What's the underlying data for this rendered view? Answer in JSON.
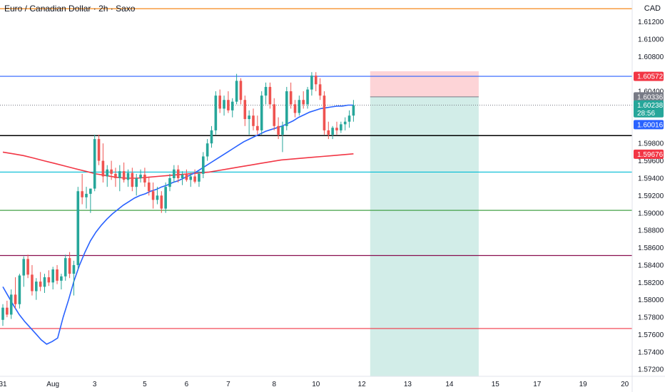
{
  "header": {
    "title": "Euro / Canadian Dollar · 2h · Saxo",
    "currency": "CAD"
  },
  "colors": {
    "up": "#26a69a",
    "down": "#ef5350",
    "ema_short": "#2962ff",
    "ema_long": "#f23645",
    "background": "#ffffff"
  },
  "chart_data": {
    "type": "candlestick",
    "y_ticks": [
      "1.61200",
      "1.61000",
      "1.60800",
      "1.60400",
      "1.59800",
      "1.59600",
      "1.59400",
      "1.59200",
      "1.59000",
      "1.58800",
      "1.58600",
      "1.58400",
      "1.58200",
      "1.58000",
      "1.57800",
      "1.57600",
      "1.57400",
      "1.57200"
    ],
    "y_tick_values": [
      1.612,
      1.61,
      1.608,
      1.604,
      1.598,
      1.596,
      1.594,
      1.592,
      1.59,
      1.588,
      1.586,
      1.584,
      1.582,
      1.58,
      1.578,
      1.576,
      1.574,
      1.572
    ],
    "x_ticks": [
      "31",
      "Aug",
      "3",
      "5",
      "6",
      "7",
      "8",
      "10",
      "12",
      "13",
      "14",
      "15",
      "17",
      "19",
      "20"
    ],
    "x_tick_index": [
      0,
      12,
      22,
      34,
      44,
      54,
      65,
      75,
      86,
      97,
      107,
      118,
      128,
      139,
      149
    ],
    "ylim": [
      1.5712,
      1.6145
    ],
    "price_tags": [
      {
        "label": "1.60572",
        "value": 1.60572,
        "color": "#f23645"
      },
      {
        "label": "1.60336",
        "value": 1.60336,
        "color": "#787b86"
      },
      {
        "label": "1.60238",
        "value": 1.60238,
        "color": "#26a69a",
        "sub": "28:56"
      },
      {
        "label": "1.60016",
        "value": 1.60016,
        "color": "#2962ff"
      },
      {
        "label": "1.59676",
        "value": 1.59676,
        "color": "#f23645"
      }
    ],
    "horizontal_lines": [
      {
        "value": 1.6135,
        "color": "#f57c00"
      },
      {
        "value": 1.60572,
        "color": "#2962ff"
      },
      {
        "value": 1.5989,
        "color": "#000000"
      },
      {
        "value": 1.5947,
        "color": "#00bcd4"
      },
      {
        "value": 1.5903,
        "color": "#43a047"
      },
      {
        "value": 1.5851,
        "color": "#880e4f"
      },
      {
        "value": 1.5767,
        "color": "#f23645"
      }
    ],
    "position": {
      "entry": 1.60336,
      "stop": 1.6063,
      "target": 1.5712,
      "start_index": 88,
      "end_index": 114
    },
    "candles": [
      [
        1.5777,
        1.5795,
        1.577,
        1.5791
      ],
      [
        1.5791,
        1.5799,
        1.578,
        1.5783
      ],
      [
        1.5783,
        1.5812,
        1.5778,
        1.5806
      ],
      [
        1.5806,
        1.5826,
        1.579,
        1.5795
      ],
      [
        1.5795,
        1.583,
        1.579,
        1.5828
      ],
      [
        1.5828,
        1.585,
        1.5815,
        1.5847
      ],
      [
        1.5847,
        1.5852,
        1.5825,
        1.5829
      ],
      [
        1.5829,
        1.584,
        1.5805,
        1.581
      ],
      [
        1.581,
        1.5825,
        1.58,
        1.5821
      ],
      [
        1.5821,
        1.5832,
        1.581,
        1.5815
      ],
      [
        1.5815,
        1.583,
        1.5808,
        1.5826
      ],
      [
        1.5826,
        1.5834,
        1.5816,
        1.582
      ],
      [
        1.582,
        1.5838,
        1.5812,
        1.5835
      ],
      [
        1.5835,
        1.584,
        1.5818,
        1.5822
      ],
      [
        1.5822,
        1.583,
        1.5812,
        1.5827
      ],
      [
        1.5827,
        1.5852,
        1.5822,
        1.5848
      ],
      [
        1.5848,
        1.5855,
        1.5825,
        1.583
      ],
      [
        1.583,
        1.5845,
        1.5805,
        1.584
      ],
      [
        1.584,
        1.593,
        1.5835,
        1.5925
      ],
      [
        1.5925,
        1.5945,
        1.591,
        1.5918
      ],
      [
        1.5918,
        1.593,
        1.5905,
        1.5922
      ],
      [
        1.5922,
        1.5928,
        1.59,
        1.5928
      ],
      [
        1.5928,
        1.599,
        1.5925,
        1.5985
      ],
      [
        1.5985,
        1.599,
        1.5955,
        1.596
      ],
      [
        1.596,
        1.598,
        1.5935,
        1.5942
      ],
      [
        1.5942,
        1.5955,
        1.593,
        1.595
      ],
      [
        1.595,
        1.596,
        1.5938,
        1.5945
      ],
      [
        1.5945,
        1.5952,
        1.593,
        1.594
      ],
      [
        1.594,
        1.5955,
        1.5925,
        1.5948
      ],
      [
        1.5948,
        1.5958,
        1.5935,
        1.5938
      ],
      [
        1.5938,
        1.595,
        1.593,
        1.5946
      ],
      [
        1.5946,
        1.5952,
        1.5925,
        1.593
      ],
      [
        1.593,
        1.5945,
        1.592,
        1.594
      ],
      [
        1.594,
        1.595,
        1.5935,
        1.5944
      ],
      [
        1.5944,
        1.5952,
        1.593,
        1.5935
      ],
      [
        1.5935,
        1.5942,
        1.592,
        1.5925
      ],
      [
        1.5925,
        1.5935,
        1.5905,
        1.5915
      ],
      [
        1.5915,
        1.593,
        1.591,
        1.592
      ],
      [
        1.592,
        1.5925,
        1.59,
        1.5905
      ],
      [
        1.5905,
        1.5935,
        1.59,
        1.593
      ],
      [
        1.593,
        1.5945,
        1.5925,
        1.594
      ],
      [
        1.594,
        1.5955,
        1.5935,
        1.595
      ],
      [
        1.595,
        1.5955,
        1.5935,
        1.594
      ],
      [
        1.594,
        1.5948,
        1.5932,
        1.5944
      ],
      [
        1.5944,
        1.595,
        1.5936,
        1.5938
      ],
      [
        1.5938,
        1.5946,
        1.593,
        1.5942
      ],
      [
        1.5942,
        1.595,
        1.5934,
        1.5936
      ],
      [
        1.5936,
        1.5948,
        1.593,
        1.5945
      ],
      [
        1.5945,
        1.597,
        1.594,
        1.5965
      ],
      [
        1.5965,
        1.5985,
        1.596,
        1.598
      ],
      [
        1.598,
        1.6,
        1.5975,
        1.5995
      ],
      [
        1.5995,
        1.604,
        1.599,
        1.6035
      ],
      [
        1.6035,
        1.6042,
        1.6015,
        1.602
      ],
      [
        1.602,
        1.6035,
        1.6012,
        1.603
      ],
      [
        1.603,
        1.604,
        1.6015,
        1.6018
      ],
      [
        1.6018,
        1.6032,
        1.601,
        1.6028
      ],
      [
        1.6028,
        1.606,
        1.6025,
        1.6052
      ],
      [
        1.6052,
        1.6055,
        1.6025,
        1.603
      ],
      [
        1.603,
        1.6035,
        1.6,
        1.6008
      ],
      [
        1.6008,
        1.6018,
        1.599,
        1.6012
      ],
      [
        1.6012,
        1.602,
        1.5995,
        1.6
      ],
      [
        1.6,
        1.6012,
        1.599,
        1.5995
      ],
      [
        1.5995,
        1.604,
        1.599,
        1.6035
      ],
      [
        1.6035,
        1.605,
        1.6025,
        1.6045
      ],
      [
        1.6045,
        1.605,
        1.602,
        1.6025
      ],
      [
        1.6025,
        1.6032,
        1.5995,
        1.6
      ],
      [
        1.6,
        1.601,
        1.5985,
        1.599
      ],
      [
        1.599,
        1.6005,
        1.597,
        1.6
      ],
      [
        1.6,
        1.6045,
        1.5995,
        1.604
      ],
      [
        1.604,
        1.605,
        1.602,
        1.6025
      ],
      [
        1.6025,
        1.603,
        1.601,
        1.6015
      ],
      [
        1.6015,
        1.6035,
        1.6012,
        1.603
      ],
      [
        1.603,
        1.604,
        1.602,
        1.6025
      ],
      [
        1.6025,
        1.6045,
        1.602,
        1.6042
      ],
      [
        1.6042,
        1.6062,
        1.6035,
        1.6058
      ],
      [
        1.6058,
        1.6062,
        1.604,
        1.6048
      ],
      [
        1.6048,
        1.6055,
        1.603,
        1.6035
      ],
      [
        1.6035,
        1.604,
        1.599,
        1.5995
      ],
      [
        1.5995,
        1.6005,
        1.5985,
        1.599
      ],
      [
        1.599,
        1.6,
        1.5985,
        1.5998
      ],
      [
        1.5998,
        1.6005,
        1.599,
        1.5995
      ],
      [
        1.5995,
        1.6005,
        1.5992,
        1.6002
      ],
      [
        1.6002,
        1.601,
        1.5995,
        1.6005
      ],
      [
        1.6005,
        1.6018,
        1.5998,
        1.6012
      ],
      [
        1.6012,
        1.603,
        1.6005,
        1.6024
      ]
    ],
    "ema_short": [
      1.5815,
      1.5804,
      1.5793,
      1.5783,
      1.5775,
      1.5768,
      1.5761,
      1.5754,
      1.5749,
      1.5752,
      1.5756,
      1.578,
      1.58,
      1.5822,
      1.584,
      1.5855,
      1.5868,
      1.5878,
      1.5886,
      1.5893,
      1.5899,
      1.5904,
      1.5909,
      1.5913,
      1.5917,
      1.592,
      1.5922,
      1.5925,
      1.5927,
      1.593,
      1.5932,
      1.5935,
      1.5937,
      1.594,
      1.5943,
      1.5946,
      1.595,
      1.5954,
      1.5958,
      1.5962,
      1.5966,
      1.597,
      1.5974,
      1.5978,
      1.5982,
      1.5985,
      1.5988,
      1.5991,
      1.5994,
      1.5996,
      1.5998,
      1.6,
      1.6003,
      1.6006,
      1.601,
      1.6013,
      1.6016,
      1.6018,
      1.602,
      1.6021,
      1.6022,
      1.6023,
      1.6023,
      1.6024,
      1.6024
    ],
    "ema_long": [
      1.597,
      1.5968,
      1.5966,
      1.5963,
      1.596,
      1.5957,
      1.5954,
      1.5951,
      1.5948,
      1.5945,
      1.5943,
      1.5941,
      1.594,
      1.594,
      1.5941,
      1.5942,
      1.5943,
      1.5944,
      1.5945,
      1.5946,
      1.5947,
      1.5949,
      1.5951,
      1.5953,
      1.5955,
      1.5957,
      1.5959,
      1.5961,
      1.5962,
      1.5963,
      1.5964,
      1.5965,
      1.5966,
      1.5967,
      1.5968
    ]
  }
}
